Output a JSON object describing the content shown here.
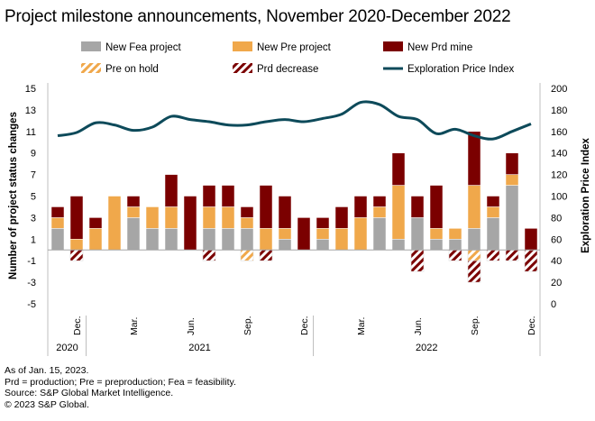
{
  "title": "Project milestone announcements, November 2020-December 2022",
  "footnotes": [
    "As of Jan. 15, 2023.",
    "Prd = production; Pre = preproduction; Fea = feasibility.",
    "Source: S&P Global Market Intelligence.",
    "© 2023 S&P Global."
  ],
  "chart_data": {
    "type": "bar",
    "stacked": true,
    "ylabel": "Number of project status changes",
    "y2label": "Exploration Price Index",
    "ylim": [
      -5,
      15
    ],
    "yticks": [
      15,
      13,
      11,
      9,
      7,
      5,
      3,
      1,
      -1,
      -3,
      -5
    ],
    "y2lim": [
      0,
      200
    ],
    "y2ticks": [
      200,
      180,
      160,
      140,
      120,
      100,
      80,
      60,
      40,
      20,
      0
    ],
    "categories": [
      "Nov 2020",
      "Dec 2020",
      "Jan 2021",
      "Feb 2021",
      "Mar 2021",
      "Apr 2021",
      "May 2021",
      "Jun 2021",
      "Jul 2021",
      "Aug 2021",
      "Sep 2021",
      "Oct 2021",
      "Nov 2021",
      "Dec 2021",
      "Jan 2022",
      "Feb 2022",
      "Mar 2022",
      "Apr 2022",
      "May 2022",
      "Jun 2022",
      "Jul 2022",
      "Aug 2022",
      "Sep 2022",
      "Oct 2022",
      "Nov 2022",
      "Dec 2022"
    ],
    "xtick_labels": [
      {
        "index": 1,
        "label": "Dec."
      },
      {
        "index": 4,
        "label": "Mar."
      },
      {
        "index": 7,
        "label": "Jun."
      },
      {
        "index": 10,
        "label": "Sep."
      },
      {
        "index": 13,
        "label": "Dec."
      },
      {
        "index": 16,
        "label": "Mar."
      },
      {
        "index": 19,
        "label": "Jun."
      },
      {
        "index": 22,
        "label": "Sep."
      },
      {
        "index": 25,
        "label": "Dec."
      }
    ],
    "years": [
      {
        "label": "2020",
        "from": 0,
        "to": 1
      },
      {
        "label": "2021",
        "from": 2,
        "to": 13
      },
      {
        "label": "2022",
        "from": 14,
        "to": 25
      }
    ],
    "series": [
      {
        "name": "New Fea project",
        "color": "#a6a6a6",
        "axis": "left",
        "values": [
          2,
          0,
          0,
          0,
          3,
          2,
          2,
          0,
          2,
          2,
          2,
          0,
          1,
          0,
          1,
          0,
          0,
          3,
          1,
          3,
          1,
          1,
          2,
          3,
          6,
          0
        ]
      },
      {
        "name": "New Pre project",
        "color": "#f0a84b",
        "axis": "left",
        "values": [
          1,
          1,
          2,
          5,
          1,
          2,
          2,
          0,
          2,
          2,
          1,
          2,
          1,
          0,
          1,
          2,
          3,
          1,
          5,
          0,
          1,
          1,
          4,
          1,
          1,
          0
        ]
      },
      {
        "name": "New Prd mine",
        "color": "#7b0000",
        "axis": "left",
        "values": [
          1,
          4,
          1,
          0,
          1,
          0,
          3,
          5,
          2,
          2,
          1,
          4,
          3,
          3,
          1,
          2,
          2,
          1,
          3,
          2,
          4,
          0,
          5,
          1,
          2,
          2
        ]
      },
      {
        "name": "Pre on hold",
        "color": "#f0a84b",
        "pattern": "hatched",
        "axis": "left",
        "values": [
          0,
          0,
          0,
          0,
          0,
          0,
          0,
          0,
          0,
          0,
          -1,
          0,
          0,
          0,
          0,
          0,
          0,
          0,
          0,
          0,
          0,
          0,
          -1,
          0,
          0,
          0
        ]
      },
      {
        "name": "Prd decrease",
        "color": "#7b0000",
        "pattern": "hatched",
        "axis": "left",
        "values": [
          0,
          -1,
          0,
          0,
          0,
          0,
          0,
          0,
          -1,
          0,
          0,
          -1,
          0,
          0,
          0,
          0,
          0,
          0,
          0,
          -2,
          0,
          -1,
          -2,
          -1,
          -1,
          -2
        ]
      },
      {
        "name": "Exploration Price Index",
        "type": "line",
        "color": "#0d4a5a",
        "axis": "right",
        "values": [
          156,
          159,
          168,
          166,
          161,
          164,
          174,
          171,
          169,
          166,
          166,
          169,
          171,
          169,
          172,
          176,
          187,
          185,
          174,
          171,
          158,
          162,
          156,
          153,
          160,
          167
        ]
      }
    ],
    "legend": "top"
  }
}
